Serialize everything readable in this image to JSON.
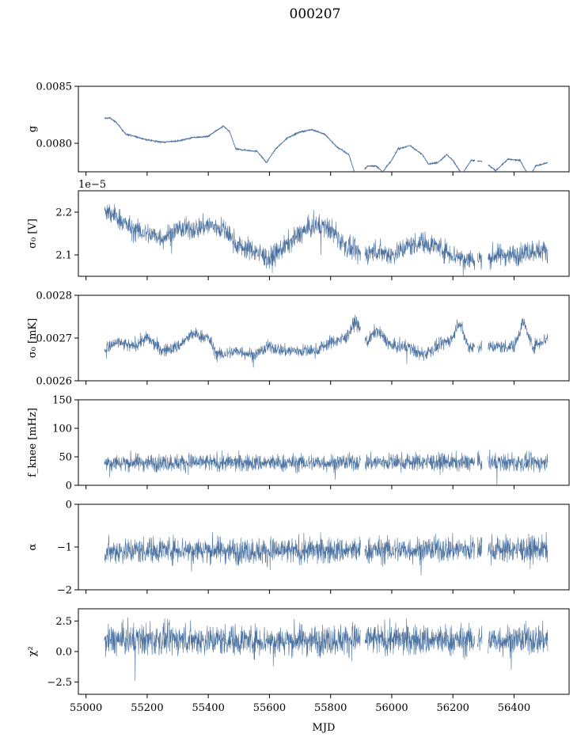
{
  "chart_data": {
    "type": "line",
    "title": "000207",
    "xlabel": "MJD",
    "xlim": [
      54975,
      56580
    ],
    "xticks": [
      55000,
      55200,
      55400,
      55600,
      55800,
      56000,
      56200,
      56400
    ],
    "xtick_labels": [
      "55000",
      "55200",
      "55400",
      "55600",
      "55800",
      "56000",
      "56200",
      "56400"
    ],
    "line_color": "#4c72a0",
    "panels": [
      {
        "id": "g",
        "ylabel": "g",
        "ylim": [
          0.00775,
          0.0085
        ],
        "yticks": [
          0.0085,
          0.008
        ],
        "ytick_labels": [
          "0.0085",
          "0.0080"
        ],
        "offset_text": "",
        "noise": 4e-06,
        "series": [
          {
            "x": 55060,
            "y": 0.00822
          },
          {
            "x": 55080,
            "y": 0.00822
          },
          {
            "x": 55100,
            "y": 0.00818
          },
          {
            "x": 55130,
            "y": 0.00808
          },
          {
            "x": 55160,
            "y": 0.00806
          },
          {
            "x": 55200,
            "y": 0.00803
          },
          {
            "x": 55250,
            "y": 0.00801
          },
          {
            "x": 55300,
            "y": 0.00802
          },
          {
            "x": 55350,
            "y": 0.00805
          },
          {
            "x": 55400,
            "y": 0.00806
          },
          {
            "x": 55420,
            "y": 0.0081
          },
          {
            "x": 55450,
            "y": 0.00815
          },
          {
            "x": 55470,
            "y": 0.0081
          },
          {
            "x": 55490,
            "y": 0.00795
          },
          {
            "x": 55520,
            "y": 0.00794
          },
          {
            "x": 55560,
            "y": 0.00793
          },
          {
            "x": 55590,
            "y": 0.00783
          },
          {
            "x": 55620,
            "y": 0.00795
          },
          {
            "x": 55660,
            "y": 0.00805
          },
          {
            "x": 55700,
            "y": 0.0081
          },
          {
            "x": 55740,
            "y": 0.00812
          },
          {
            "x": 55780,
            "y": 0.00808
          },
          {
            "x": 55820,
            "y": 0.00797
          },
          {
            "x": 55860,
            "y": 0.0079
          },
          {
            "x": 55880,
            "y": 0.00773
          },
          {
            "x": 55900,
            "y": 0.00772
          },
          {
            "x": 55920,
            "y": 0.0078
          },
          {
            "x": 55950,
            "y": 0.0078
          },
          {
            "x": 55970,
            "y": 0.00775
          },
          {
            "x": 56000,
            "y": 0.00785
          },
          {
            "x": 56020,
            "y": 0.00795
          },
          {
            "x": 56060,
            "y": 0.00798
          },
          {
            "x": 56100,
            "y": 0.0079
          },
          {
            "x": 56120,
            "y": 0.00782
          },
          {
            "x": 56150,
            "y": 0.00783
          },
          {
            "x": 56180,
            "y": 0.0079
          },
          {
            "x": 56200,
            "y": 0.00785
          },
          {
            "x": 56230,
            "y": 0.00773
          },
          {
            "x": 56260,
            "y": 0.00785
          },
          {
            "x": 56300,
            "y": 0.00784
          },
          {
            "x": 56340,
            "y": 0.00776
          },
          {
            "x": 56380,
            "y": 0.00786
          },
          {
            "x": 56420,
            "y": 0.00785
          },
          {
            "x": 56450,
            "y": 0.0077
          },
          {
            "x": 56470,
            "y": 0.0078
          },
          {
            "x": 56510,
            "y": 0.00783
          }
        ]
      },
      {
        "id": "sigma0-v",
        "ylabel": "σ₀ [V]",
        "ylim": [
          2.05,
          2.25
        ],
        "yticks": [
          2.2,
          2.1
        ],
        "ytick_labels": [
          "2.2",
          "2.1"
        ],
        "offset_text": "1e−5",
        "noise": 0.018,
        "series": [
          {
            "x": 55060,
            "y": 2.2
          },
          {
            "x": 55100,
            "y": 2.19
          },
          {
            "x": 55150,
            "y": 2.16
          },
          {
            "x": 55200,
            "y": 2.15
          },
          {
            "x": 55250,
            "y": 2.14
          },
          {
            "x": 55300,
            "y": 2.16
          },
          {
            "x": 55350,
            "y": 2.16
          },
          {
            "x": 55400,
            "y": 2.17
          },
          {
            "x": 55450,
            "y": 2.16
          },
          {
            "x": 55500,
            "y": 2.12
          },
          {
            "x": 55550,
            "y": 2.11
          },
          {
            "x": 55600,
            "y": 2.09
          },
          {
            "x": 55650,
            "y": 2.12
          },
          {
            "x": 55700,
            "y": 2.15
          },
          {
            "x": 55750,
            "y": 2.17
          },
          {
            "x": 55800,
            "y": 2.16
          },
          {
            "x": 55850,
            "y": 2.12
          },
          {
            "x": 55900,
            "y": 2.1
          },
          {
            "x": 55950,
            "y": 2.11
          },
          {
            "x": 56000,
            "y": 2.1
          },
          {
            "x": 56050,
            "y": 2.12
          },
          {
            "x": 56100,
            "y": 2.13
          },
          {
            "x": 56150,
            "y": 2.12
          },
          {
            "x": 56200,
            "y": 2.1
          },
          {
            "x": 56250,
            "y": 2.09
          },
          {
            "x": 56300,
            "y": 2.09
          },
          {
            "x": 56350,
            "y": 2.1
          },
          {
            "x": 56400,
            "y": 2.1
          },
          {
            "x": 56450,
            "y": 2.11
          },
          {
            "x": 56510,
            "y": 2.11
          }
        ]
      },
      {
        "id": "sigma0-mk",
        "ylabel": "σ₀ [mK]",
        "ylim": [
          0.0026,
          0.0028
        ],
        "yticks": [
          0.0028,
          0.0027,
          0.0026
        ],
        "ytick_labels": [
          "0.0028",
          "0.0027",
          "0.0026"
        ],
        "offset_text": "",
        "noise": 1.1e-05,
        "series": [
          {
            "x": 55060,
            "y": 0.00267
          },
          {
            "x": 55100,
            "y": 0.00269
          },
          {
            "x": 55150,
            "y": 0.00268
          },
          {
            "x": 55200,
            "y": 0.0027
          },
          {
            "x": 55250,
            "y": 0.00267
          },
          {
            "x": 55300,
            "y": 0.00268
          },
          {
            "x": 55350,
            "y": 0.00271
          },
          {
            "x": 55400,
            "y": 0.0027
          },
          {
            "x": 55430,
            "y": 0.00266
          },
          {
            "x": 55500,
            "y": 0.00267
          },
          {
            "x": 55550,
            "y": 0.00266
          },
          {
            "x": 55600,
            "y": 0.00268
          },
          {
            "x": 55650,
            "y": 0.00267
          },
          {
            "x": 55700,
            "y": 0.00267
          },
          {
            "x": 55750,
            "y": 0.00267
          },
          {
            "x": 55800,
            "y": 0.00269
          },
          {
            "x": 55850,
            "y": 0.0027
          },
          {
            "x": 55880,
            "y": 0.00274
          },
          {
            "x": 55920,
            "y": 0.00269
          },
          {
            "x": 55950,
            "y": 0.00272
          },
          {
            "x": 56000,
            "y": 0.00268
          },
          {
            "x": 56050,
            "y": 0.00268
          },
          {
            "x": 56100,
            "y": 0.00266
          },
          {
            "x": 56150,
            "y": 0.00268
          },
          {
            "x": 56200,
            "y": 0.0027
          },
          {
            "x": 56220,
            "y": 0.00274
          },
          {
            "x": 56250,
            "y": 0.00268
          },
          {
            "x": 56300,
            "y": 0.00268
          },
          {
            "x": 56350,
            "y": 0.00268
          },
          {
            "x": 56400,
            "y": 0.00268
          },
          {
            "x": 56430,
            "y": 0.00274
          },
          {
            "x": 56460,
            "y": 0.00268
          },
          {
            "x": 56510,
            "y": 0.0027
          }
        ]
      },
      {
        "id": "fknee",
        "ylabel": "f_knee [mHz]",
        "ylim": [
          0,
          150
        ],
        "yticks": [
          150,
          100,
          50,
          0
        ],
        "ytick_labels": [
          "150",
          "100",
          "50",
          "0"
        ],
        "offset_text": "",
        "noise": 11,
        "series": [
          {
            "x": 55060,
            "y": 40
          },
          {
            "x": 55300,
            "y": 40
          },
          {
            "x": 55600,
            "y": 39
          },
          {
            "x": 55850,
            "y": 40
          },
          {
            "x": 56100,
            "y": 41
          },
          {
            "x": 56300,
            "y": 40
          },
          {
            "x": 56510,
            "y": 39
          }
        ]
      },
      {
        "id": "alpha",
        "ylabel": "α",
        "ylim": [
          -2,
          0
        ],
        "yticks": [
          0,
          -1,
          -2
        ],
        "ytick_labels": [
          "0",
          "−1",
          "−2"
        ],
        "offset_text": "",
        "noise": 0.22,
        "series": [
          {
            "x": 55060,
            "y": -1.1
          },
          {
            "x": 55300,
            "y": -1.05
          },
          {
            "x": 55600,
            "y": -1.1
          },
          {
            "x": 55900,
            "y": -1.08
          },
          {
            "x": 56200,
            "y": -1.05
          },
          {
            "x": 56510,
            "y": -1.05
          }
        ]
      },
      {
        "id": "chi2",
        "ylabel": "χ²",
        "ylim": [
          -3.5,
          3.5
        ],
        "yticks": [
          2.5,
          0,
          -2.5
        ],
        "ytick_labels": [
          "2.5",
          "0.0",
          "−2.5"
        ],
        "offset_text": "",
        "noise": 0.9,
        "series": [
          {
            "x": 55060,
            "y": 0.9
          },
          {
            "x": 55300,
            "y": 1.0
          },
          {
            "x": 55600,
            "y": 0.9
          },
          {
            "x": 55900,
            "y": 1.0
          },
          {
            "x": 56200,
            "y": 0.9
          },
          {
            "x": 56510,
            "y": 1.0
          }
        ]
      }
    ],
    "gaps": [
      [
        55898,
        55912
      ],
      [
        56272,
        56280
      ],
      [
        56295,
        56315
      ]
    ]
  }
}
